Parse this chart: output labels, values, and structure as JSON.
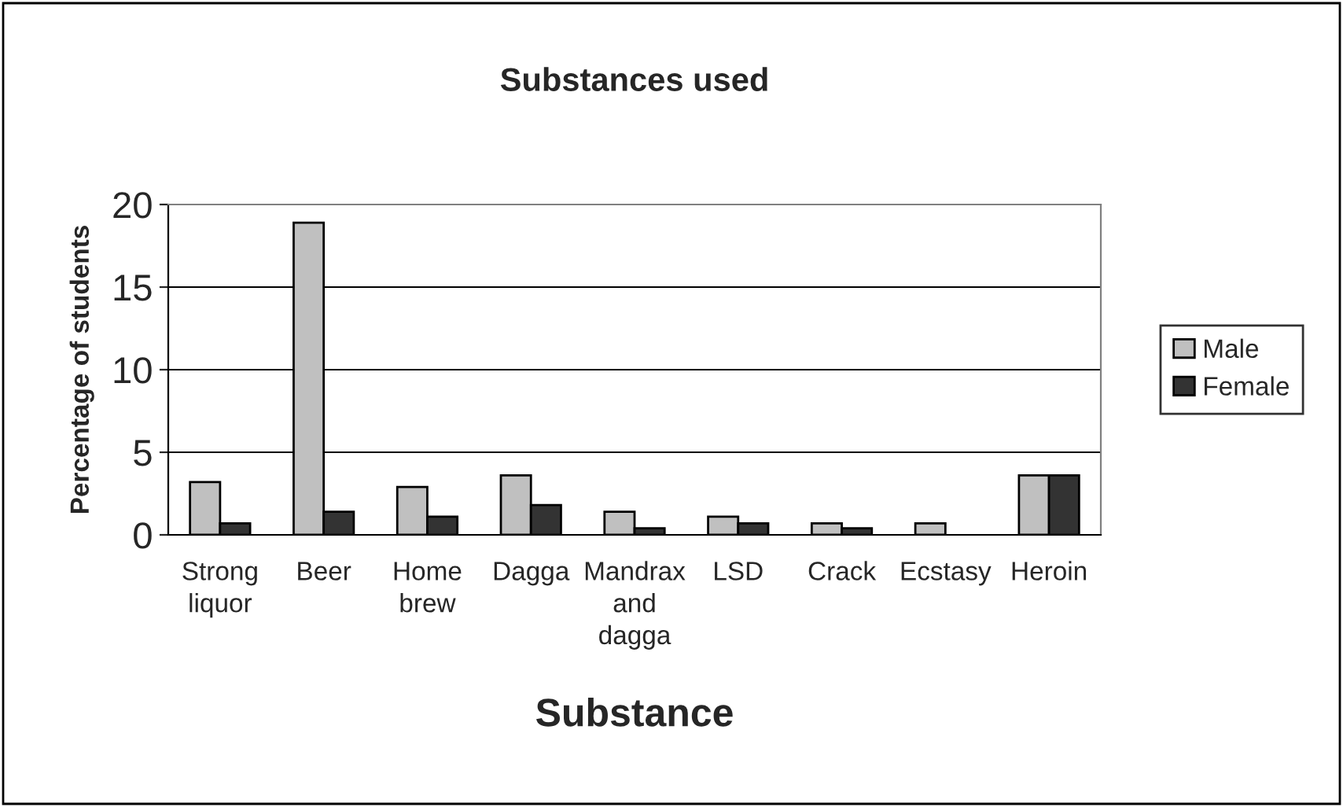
{
  "chart_data": {
    "type": "bar",
    "title": "Substances used",
    "xlabel": "Substance",
    "ylabel": "Percentage of students",
    "categories": [
      "Strong\nliquor",
      "Beer",
      "Home\nbrew",
      "Dagga",
      "Mandrax\nand\ndagga",
      "LSD",
      "Crack",
      "Ecstasy",
      "Heroin"
    ],
    "series": [
      {
        "name": "Male",
        "color": "#c0c0c0",
        "values": [
          3.2,
          18.9,
          2.9,
          3.6,
          1.4,
          1.1,
          0.7,
          0.7,
          3.6
        ]
      },
      {
        "name": "Female",
        "color": "#333333",
        "values": [
          0.7,
          1.4,
          1.1,
          1.8,
          0.4,
          0.7,
          0.4,
          null,
          3.6
        ]
      }
    ],
    "ylim": [
      0,
      20
    ],
    "yticks": [
      0,
      5,
      10,
      15,
      20
    ],
    "grid": "y",
    "legend": "right"
  }
}
